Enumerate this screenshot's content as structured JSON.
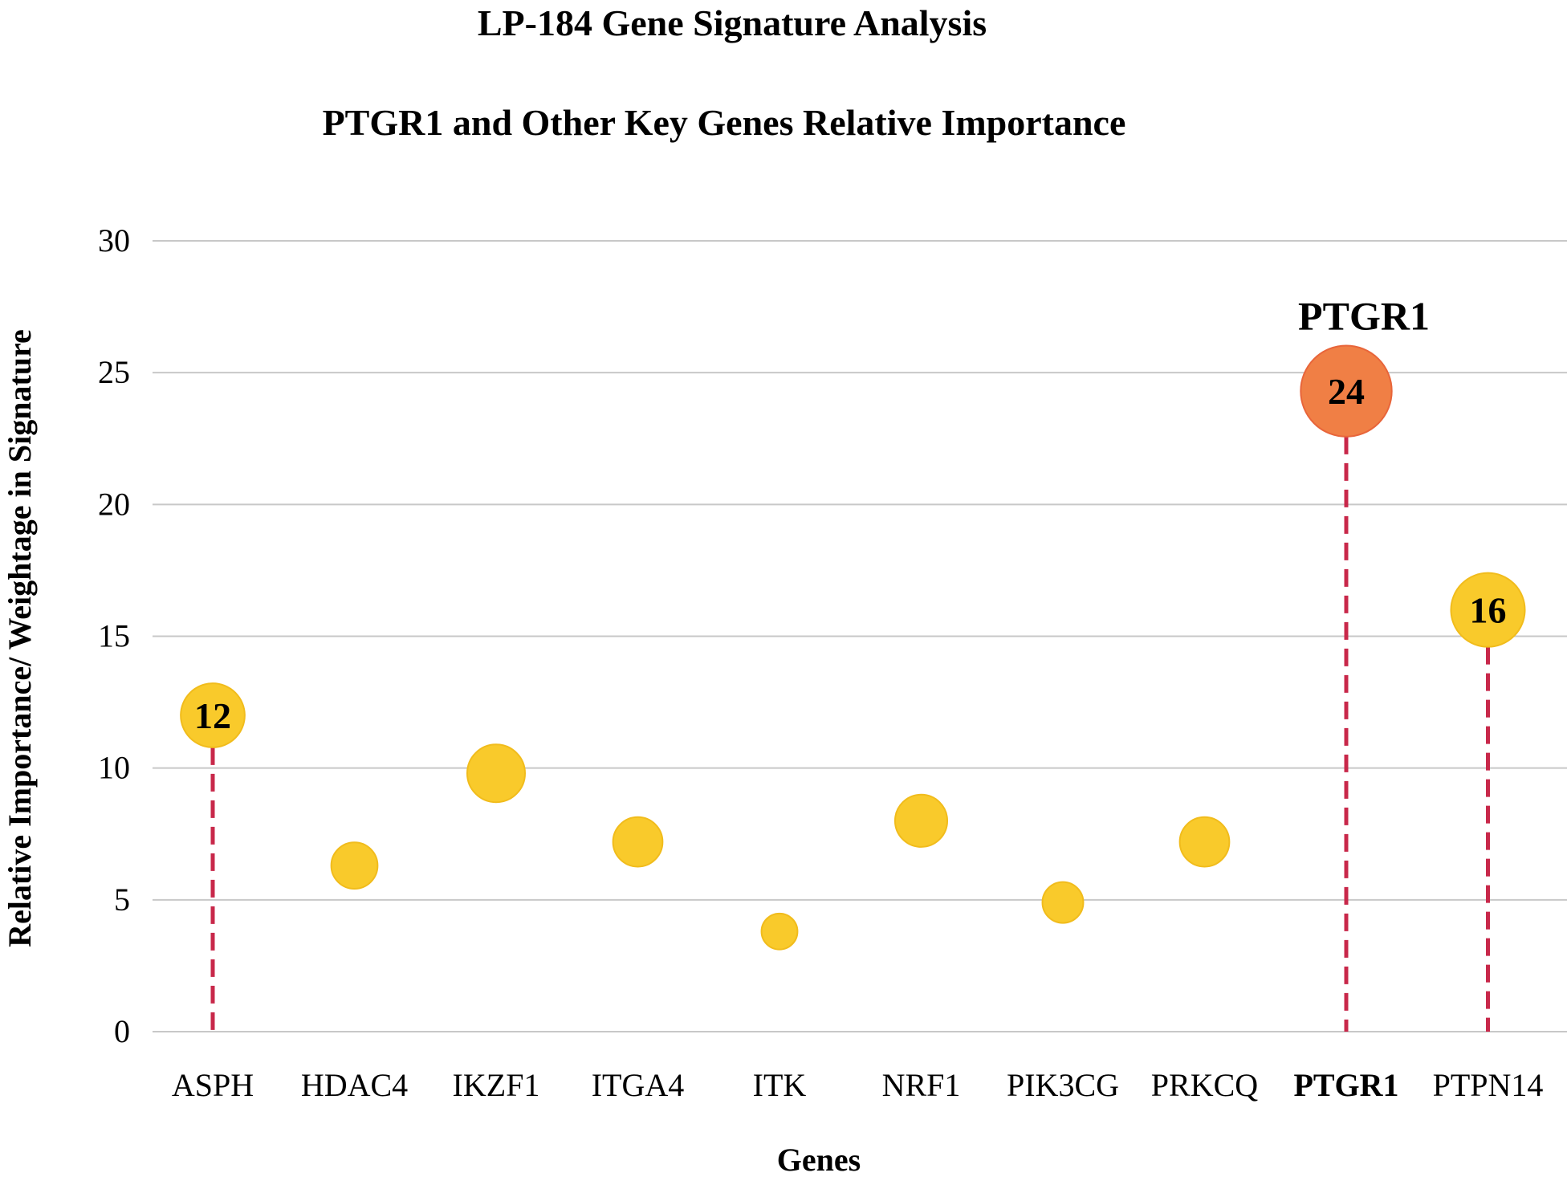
{
  "chart_data": {
    "type": "scatter",
    "title": "LP-184 Gene Signature Analysis",
    "subtitle": "PTGR1 and Other Key Genes Relative Importance",
    "xlabel": "Genes",
    "ylabel": "Relative Importance/ Weightage in Signature",
    "ylim": [
      0,
      30
    ],
    "yticks": [
      0,
      5,
      10,
      15,
      20,
      25,
      30
    ],
    "grid": true,
    "categories": [
      "ASPH",
      "HDAC4",
      "IKZF1",
      "ITGA4",
      "ITK",
      "NRF1",
      "PIK3CG",
      "PRKCQ",
      "PTGR1",
      "PTPN14"
    ],
    "values": [
      12,
      6.3,
      9.8,
      7.2,
      3.8,
      8,
      4.9,
      7.2,
      24.3,
      16
    ],
    "data_labels": [
      "12",
      "",
      "",
      "",
      "",
      "",
      "",
      "",
      "24",
      "16"
    ],
    "drop_lines": [
      true,
      false,
      false,
      false,
      false,
      false,
      false,
      false,
      true,
      true
    ],
    "bold_categories": [
      false,
      false,
      false,
      false,
      false,
      false,
      false,
      false,
      true,
      false
    ],
    "highlight": {
      "category": "PTGR1",
      "label": "PTGR1"
    },
    "colors": {
      "bubble": "#F9CA2B",
      "bubble_stroke": "#F1BC1C",
      "highlight": "#F07F45",
      "highlight_stroke": "#E8653A",
      "drop_line": "#C8284A",
      "grid": "#C8C8C8"
    }
  }
}
